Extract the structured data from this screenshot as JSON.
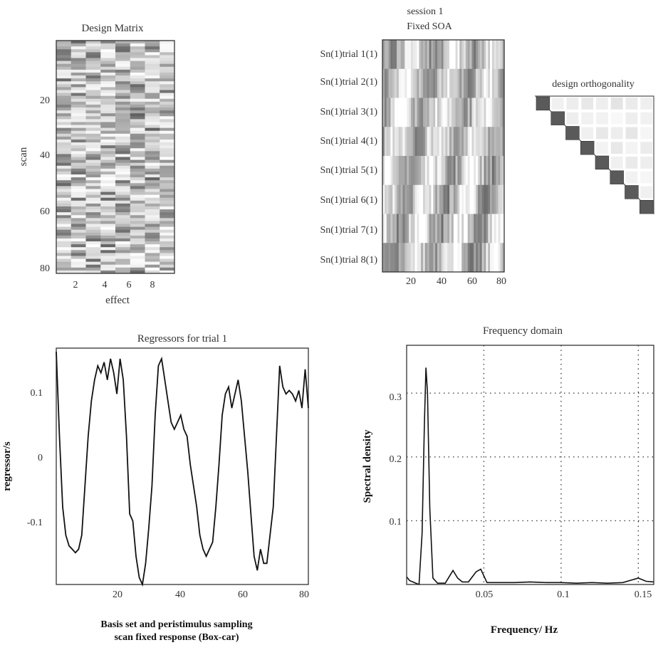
{
  "design_matrix": {
    "title": "Design Matrix",
    "ylabel": "scan",
    "xlabel": "effect",
    "yticks": [
      "20",
      "40",
      "60",
      "80"
    ],
    "xticks": [
      "2",
      "4",
      "6",
      "8"
    ]
  },
  "session": {
    "title_line1": "session 1",
    "title_line2": "Fixed SOA",
    "rows": [
      "Sn(1)trial 1(1)",
      "Sn(1)trial 2(1)",
      "Sn(1)trial 3(1)",
      "Sn(1)trial 4(1)",
      "Sn(1)trial 5(1)",
      "Sn(1)trial 6(1)",
      "Sn(1)trial 7(1)",
      "Sn(1)trial 8(1)"
    ],
    "xticks": [
      "20",
      "40",
      "60",
      "80"
    ]
  },
  "orthogonality": {
    "title": "design  orthogonality"
  },
  "chart_data": [
    {
      "type": "line",
      "title": "Regressors for trial  1",
      "ylabel": "regressor/s",
      "xlabel_line1": "Basis set and peristimulus sampling",
      "xlabel_line2": "scan  fixed  response  (Box-car)",
      "xlim": [
        1,
        80
      ],
      "ylim": [
        -0.19,
        0.145
      ],
      "xticks": [
        "20",
        "40",
        "60",
        "80"
      ],
      "yticks": [
        "0.1",
        "0",
        "-0.1"
      ],
      "x": [
        1,
        2,
        3,
        4,
        5,
        6,
        7,
        8,
        9,
        10,
        11,
        12,
        13,
        14,
        15,
        16,
        17,
        18,
        19,
        20,
        21,
        22,
        23,
        24,
        25,
        26,
        27,
        28,
        29,
        30,
        31,
        32,
        33,
        34,
        35,
        36,
        37,
        38,
        39,
        40,
        41,
        42,
        43,
        44,
        45,
        46,
        47,
        48,
        49,
        50,
        51,
        52,
        53,
        54,
        55,
        56,
        57,
        58,
        59,
        60,
        61,
        62,
        63,
        64,
        65,
        66,
        67,
        68,
        69,
        70,
        71,
        72,
        73,
        74,
        75,
        76,
        77,
        78,
        79,
        80
      ],
      "values": [
        0.14,
        0.02,
        -0.08,
        -0.12,
        -0.135,
        -0.14,
        -0.145,
        -0.14,
        -0.12,
        -0.05,
        0.02,
        0.07,
        0.1,
        0.12,
        0.11,
        0.125,
        0.1,
        0.13,
        0.11,
        0.08,
        0.13,
        0.1,
        0.02,
        -0.09,
        -0.1,
        -0.15,
        -0.18,
        -0.19,
        -0.16,
        -0.11,
        -0.05,
        0.05,
        0.12,
        0.13,
        0.1,
        0.07,
        0.04,
        0.03,
        0.04,
        0.05,
        0.03,
        0.02,
        -0.02,
        -0.05,
        -0.08,
        -0.12,
        -0.14,
        -0.15,
        -0.14,
        -0.13,
        -0.08,
        -0.02,
        0.05,
        0.08,
        0.09,
        0.06,
        0.08,
        0.1,
        0.07,
        0.02,
        -0.03,
        -0.09,
        -0.15,
        -0.17,
        -0.14,
        -0.16,
        -0.16,
        -0.12,
        -0.08,
        0.02,
        0.12,
        0.09,
        0.08,
        0.085,
        0.08,
        0.07,
        0.085,
        0.06,
        0.115,
        0.06
      ]
    },
    {
      "type": "line",
      "title": "Frequency domain",
      "ylabel": "Spectral  density",
      "xlabel": "Frequency/ Hz",
      "xlim": [
        0,
        0.16
      ],
      "ylim": [
        0,
        0.375
      ],
      "grid": true,
      "xticks": [
        "0.05",
        "0.1",
        "0.15"
      ],
      "yticks": [
        "0.3",
        "0.2",
        "0.1"
      ],
      "x": [
        0.0,
        0.002,
        0.004,
        0.006,
        0.008,
        0.01,
        0.0115,
        0.0125,
        0.0135,
        0.015,
        0.017,
        0.02,
        0.025,
        0.03,
        0.033,
        0.036,
        0.04,
        0.045,
        0.048,
        0.052,
        0.06,
        0.07,
        0.08,
        0.09,
        0.1,
        0.11,
        0.12,
        0.13,
        0.14,
        0.15,
        0.155,
        0.16
      ],
      "values": [
        0.012,
        0.006,
        0.004,
        0.002,
        0.0,
        0.08,
        0.25,
        0.34,
        0.3,
        0.12,
        0.01,
        0.002,
        0.002,
        0.022,
        0.01,
        0.004,
        0.004,
        0.02,
        0.024,
        0.003,
        0.003,
        0.003,
        0.004,
        0.003,
        0.003,
        0.002,
        0.003,
        0.002,
        0.003,
        0.01,
        0.005,
        0.004
      ]
    }
  ]
}
